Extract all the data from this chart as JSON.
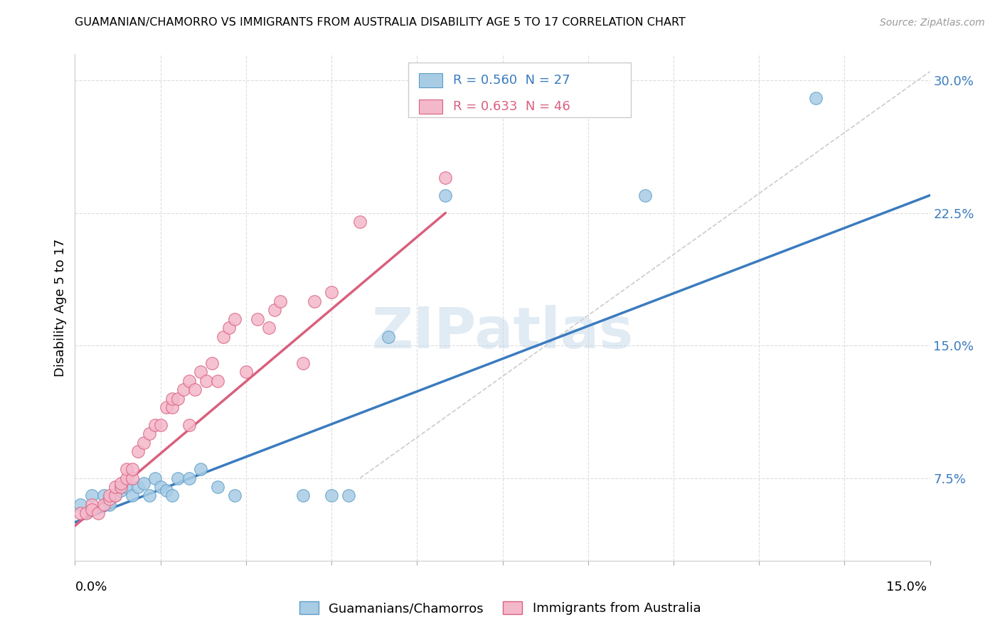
{
  "title": "GUAMANIAN/CHAMORRO VS IMMIGRANTS FROM AUSTRALIA DISABILITY AGE 5 TO 17 CORRELATION CHART",
  "source": "Source: ZipAtlas.com",
  "ylabel": "Disability Age 5 to 17",
  "xlim": [
    0.0,
    0.15
  ],
  "ylim": [
    0.028,
    0.315
  ],
  "yticks": [
    0.075,
    0.15,
    0.225,
    0.3
  ],
  "ytick_labels": [
    "7.5%",
    "15.0%",
    "22.5%",
    "30.0%"
  ],
  "blue_R": 0.56,
  "blue_N": 27,
  "pink_R": 0.633,
  "pink_N": 46,
  "blue_color": "#a8cce4",
  "blue_edge_color": "#5b9ec9",
  "pink_color": "#f4b8cb",
  "pink_edge_color": "#d9607e",
  "blue_line_color": "#3a7bbf",
  "pink_line_color": "#d9607e",
  "ref_line_color": "#cccccc",
  "blue_label": "Guamanians/Chamorros",
  "pink_label": "Immigrants from Australia",
  "watermark": "ZIPatlas",
  "blue_scatter_x": [
    0.001,
    0.003,
    0.005,
    0.006,
    0.007,
    0.008,
    0.009,
    0.01,
    0.011,
    0.012,
    0.013,
    0.014,
    0.015,
    0.016,
    0.017,
    0.018,
    0.02,
    0.022,
    0.025,
    0.028,
    0.04,
    0.045,
    0.048,
    0.055,
    0.065,
    0.1,
    0.13
  ],
  "blue_scatter_y": [
    0.06,
    0.065,
    0.065,
    0.06,
    0.065,
    0.068,
    0.07,
    0.065,
    0.07,
    0.072,
    0.065,
    0.075,
    0.07,
    0.068,
    0.065,
    0.075,
    0.075,
    0.08,
    0.07,
    0.065,
    0.065,
    0.065,
    0.065,
    0.155,
    0.235,
    0.235,
    0.29
  ],
  "pink_scatter_x": [
    0.001,
    0.002,
    0.003,
    0.003,
    0.004,
    0.005,
    0.006,
    0.006,
    0.007,
    0.007,
    0.008,
    0.008,
    0.009,
    0.009,
    0.01,
    0.01,
    0.011,
    0.012,
    0.013,
    0.014,
    0.015,
    0.016,
    0.017,
    0.017,
    0.018,
    0.019,
    0.02,
    0.02,
    0.021,
    0.022,
    0.023,
    0.024,
    0.025,
    0.026,
    0.027,
    0.028,
    0.03,
    0.032,
    0.034,
    0.035,
    0.036,
    0.04,
    0.042,
    0.045,
    0.05,
    0.065
  ],
  "pink_scatter_y": [
    0.055,
    0.055,
    0.06,
    0.057,
    0.055,
    0.06,
    0.063,
    0.065,
    0.065,
    0.07,
    0.07,
    0.072,
    0.075,
    0.08,
    0.075,
    0.08,
    0.09,
    0.095,
    0.1,
    0.105,
    0.105,
    0.115,
    0.115,
    0.12,
    0.12,
    0.125,
    0.105,
    0.13,
    0.125,
    0.135,
    0.13,
    0.14,
    0.13,
    0.155,
    0.16,
    0.165,
    0.135,
    0.165,
    0.16,
    0.17,
    0.175,
    0.14,
    0.175,
    0.18,
    0.22,
    0.245
  ],
  "blue_line_x": [
    0.0,
    0.15
  ],
  "blue_line_y": [
    0.05,
    0.235
  ],
  "pink_line_x": [
    0.0,
    0.065
  ],
  "pink_line_y": [
    0.048,
    0.225
  ],
  "ref_line_x": [
    0.05,
    0.15
  ],
  "ref_line_y": [
    0.075,
    0.305
  ]
}
